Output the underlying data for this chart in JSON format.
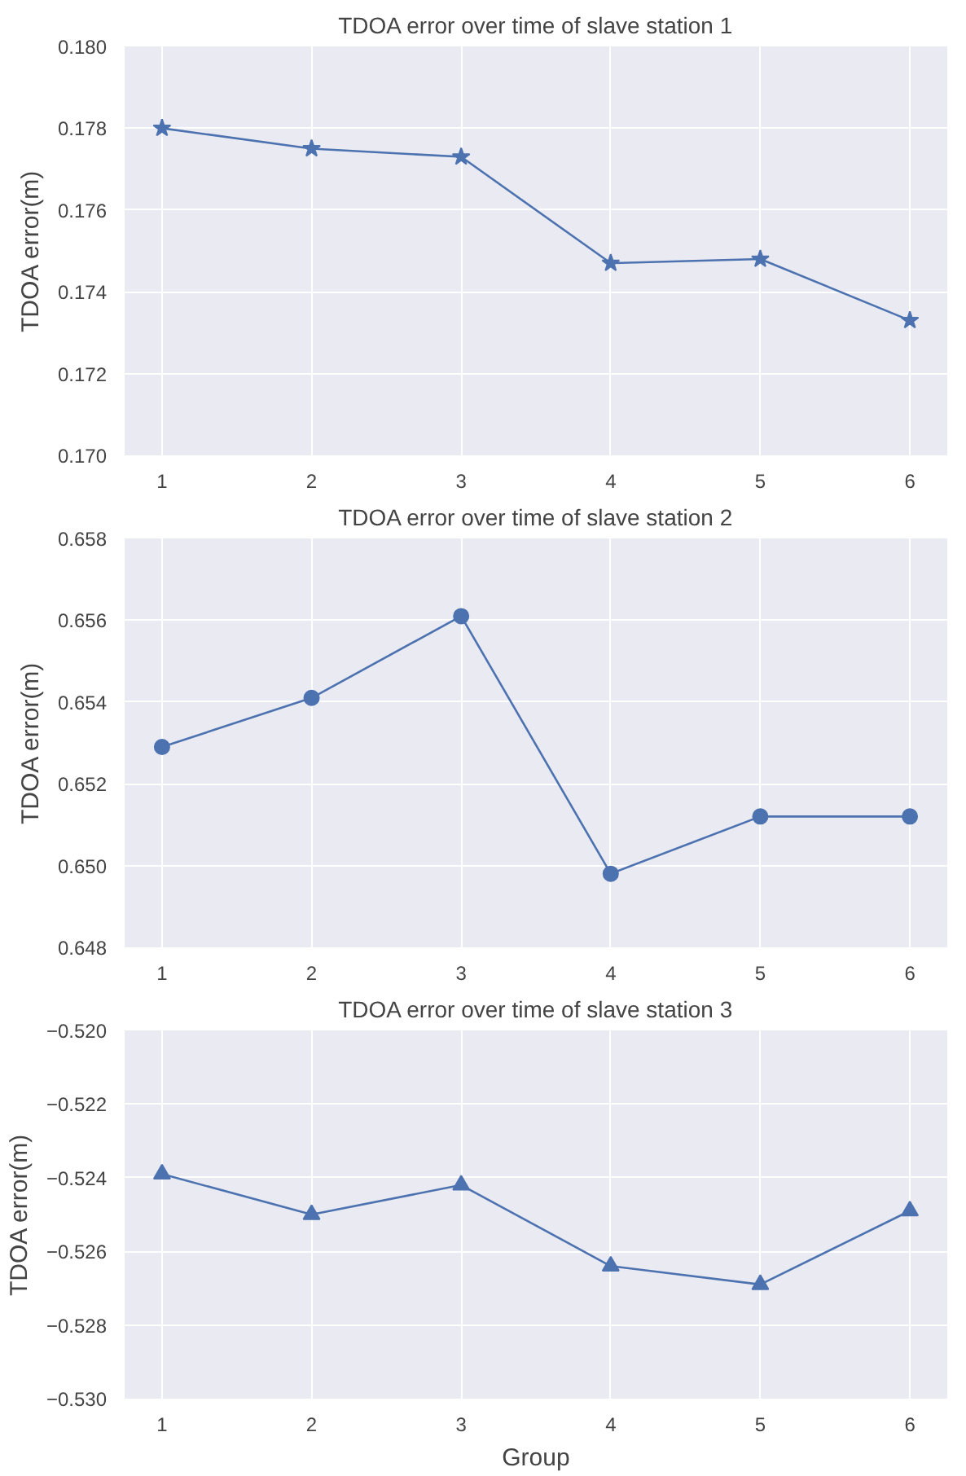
{
  "chart_data": [
    {
      "type": "line",
      "title": "TDOA error over time of slave station 1",
      "ylabel": "TDOA error(m)",
      "x": [
        1,
        2,
        3,
        4,
        5,
        6
      ],
      "series": [
        {
          "color": "#4c72b0",
          "values": [
            0.178,
            0.1775,
            0.1773,
            0.1747,
            0.1748,
            0.1733
          ]
        }
      ],
      "xlim": [
        0.75,
        6.25
      ],
      "xticks": [
        1,
        2,
        3,
        4,
        5,
        6
      ],
      "ylim": [
        0.17,
        0.18
      ],
      "yticks": [
        {
          "value": 0.17,
          "label": "0.170"
        },
        {
          "value": 0.172,
          "label": "0.172"
        },
        {
          "value": 0.174,
          "label": "0.174"
        },
        {
          "value": 0.176,
          "label": "0.176"
        },
        {
          "value": 0.178,
          "label": "0.178"
        },
        {
          "value": 0.18,
          "label": "0.180"
        }
      ],
      "grid": true,
      "marker": "star",
      "line_style": "solid"
    },
    {
      "type": "line",
      "title": "TDOA error over time of slave station 2",
      "ylabel": "TDOA error(m)",
      "x": [
        1,
        2,
        3,
        4,
        5,
        6
      ],
      "series": [
        {
          "color": "#4c72b0",
          "values": [
            0.6529,
            0.6541,
            0.6561,
            0.6498,
            0.6512,
            0.6512
          ]
        }
      ],
      "xlim": [
        0.75,
        6.25
      ],
      "xticks": [
        1,
        2,
        3,
        4,
        5,
        6
      ],
      "ylim": [
        0.648,
        0.658
      ],
      "yticks": [
        {
          "value": 0.648,
          "label": "0.648"
        },
        {
          "value": 0.65,
          "label": "0.650"
        },
        {
          "value": 0.652,
          "label": "0.652"
        },
        {
          "value": 0.654,
          "label": "0.654"
        },
        {
          "value": 0.656,
          "label": "0.656"
        },
        {
          "value": 0.658,
          "label": "0.658"
        }
      ],
      "grid": true,
      "marker": "circle",
      "line_style": "solid"
    },
    {
      "type": "line",
      "title": "TDOA error over time of slave station 3",
      "xlabel": "Group",
      "ylabel": "TDOA error(m)",
      "x": [
        1,
        2,
        3,
        4,
        5,
        6
      ],
      "series": [
        {
          "color": "#4c72b0",
          "values": [
            -0.5239,
            -0.525,
            -0.5242,
            -0.5264,
            -0.5269,
            -0.5249
          ]
        }
      ],
      "xlim": [
        0.75,
        6.25
      ],
      "xticks": [
        1,
        2,
        3,
        4,
        5,
        6
      ],
      "ylim": [
        -0.53,
        -0.52
      ],
      "yticks": [
        {
          "value": -0.53,
          "label": "−0.530"
        },
        {
          "value": -0.528,
          "label": "−0.528"
        },
        {
          "value": -0.526,
          "label": "−0.526"
        },
        {
          "value": -0.524,
          "label": "−0.524"
        },
        {
          "value": -0.522,
          "label": "−0.522"
        },
        {
          "value": -0.52,
          "label": "−0.520"
        }
      ],
      "grid": true,
      "marker": "triangle",
      "line_style": "solid"
    }
  ]
}
